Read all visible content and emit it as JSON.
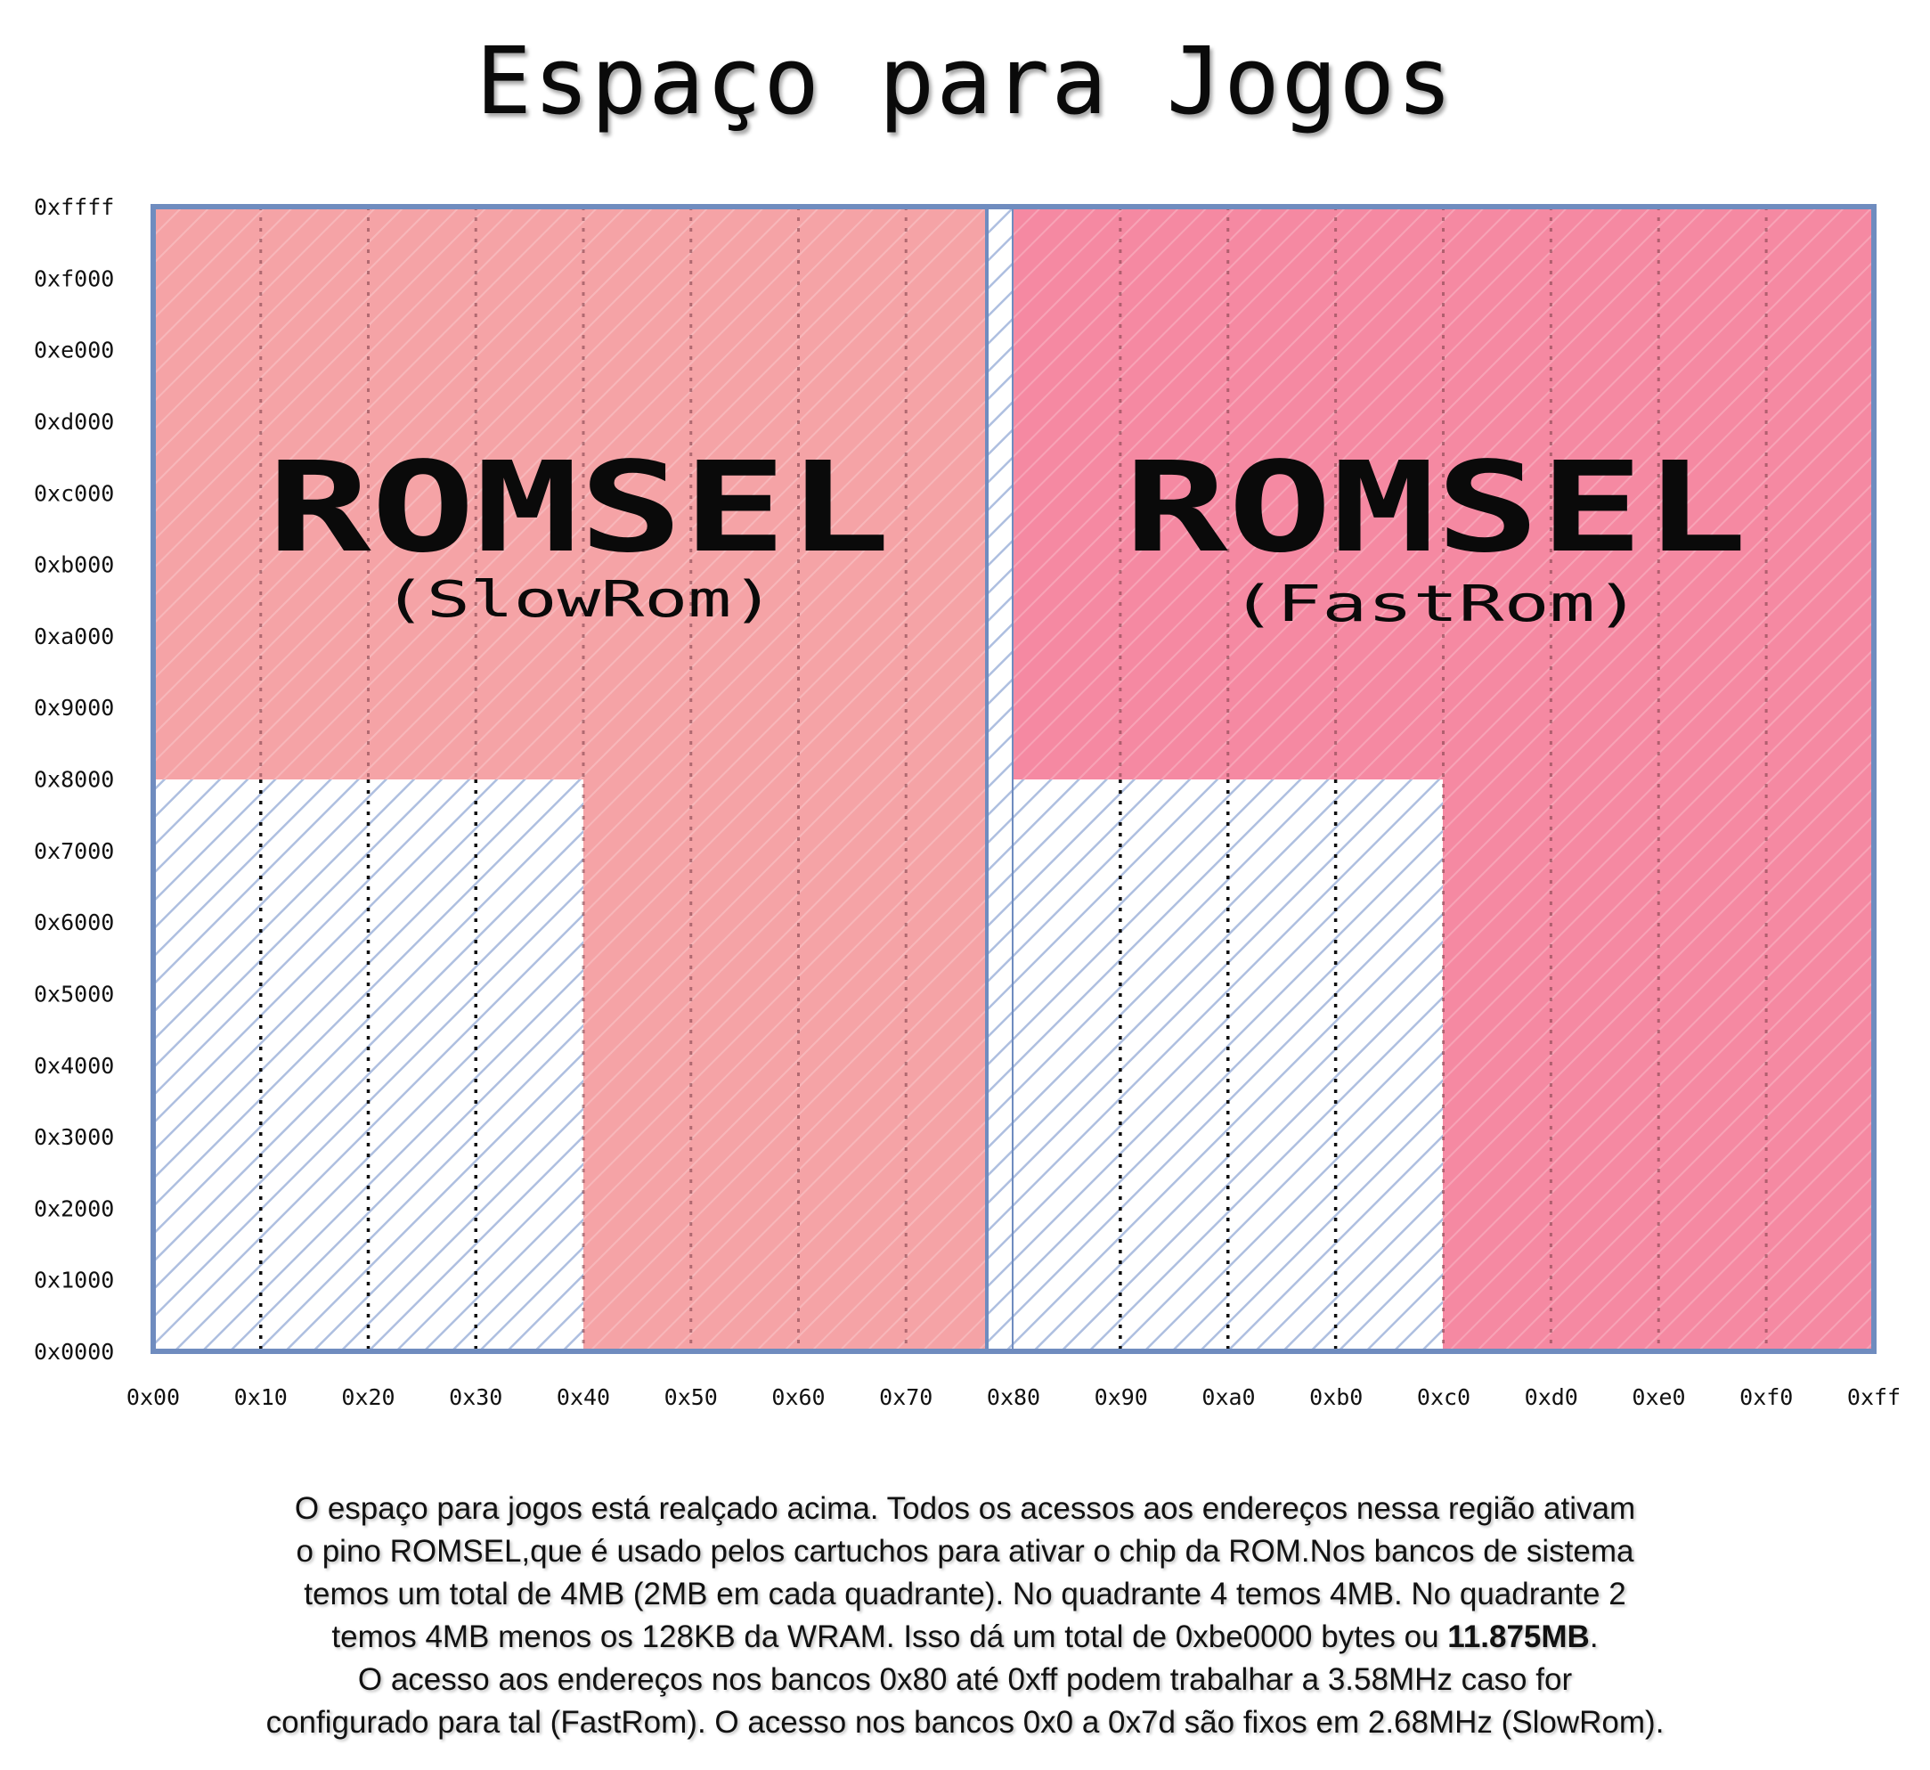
{
  "title": "Espaço para Jogos",
  "chart_data": {
    "type": "memory-map",
    "y_ticks": [
      "0xffff",
      "0xf000",
      "0xe000",
      "0xd000",
      "0xc000",
      "0xb000",
      "0xa000",
      "0x9000",
      "0x8000",
      "0x7000",
      "0x6000",
      "0x5000",
      "0x4000",
      "0x3000",
      "0x2000",
      "0x1000",
      "0x0000"
    ],
    "x_ticks": [
      "0x00",
      "0x10",
      "0x20",
      "0x30",
      "0x40",
      "0x50",
      "0x60",
      "0x70",
      "0x80",
      "0x90",
      "0xa0",
      "0xb0",
      "0xc0",
      "0xd0",
      "0xe0",
      "0xf0",
      "0xff"
    ],
    "regions": [
      {
        "label": "ROMSEL",
        "sublabel": "(SlowRom)",
        "color": "#f5a3a6",
        "banks": [
          "0x00",
          "0x7d"
        ],
        "upper_addresses": [
          "0x8000",
          "0xffff"
        ],
        "full_range_banks": [
          "0x40",
          "0x7d"
        ]
      },
      {
        "label": "ROMSEL",
        "sublabel": "(FastRom)",
        "color": "#f589a2",
        "banks": [
          "0x80",
          "0xff"
        ],
        "upper_addresses": [
          "0x8000",
          "0xffff"
        ],
        "full_range_banks": [
          "0xc0",
          "0xff"
        ]
      }
    ]
  },
  "description": {
    "lines": [
      "O espaço para jogos está realçado acima. Todos os acessos aos endereços nessa região ativam",
      "o pino ROMSEL,que é usado pelos cartuchos para ativar o chip da ROM.Nos bancos de sistema",
      "temos um total de 4MB (2MB em cada quadrante). No quadrante 4 temos 4MB. No quadrante 2"
    ],
    "line4_before": "temos 4MB menos os 128KB da WRAM. Isso dá um total de 0xbe0000 bytes ou ",
    "line4_bold": "11.875MB",
    "line4_after": ".",
    "lines_end": [
      "O acesso aos endereços nos bancos 0x80 até 0xff podem trabalhar a 3.58MHz caso for",
      "configurado para tal (FastRom). O acesso nos bancos 0x0 a 0x7d são fixos em 2.68MHz (SlowRom)."
    ]
  }
}
